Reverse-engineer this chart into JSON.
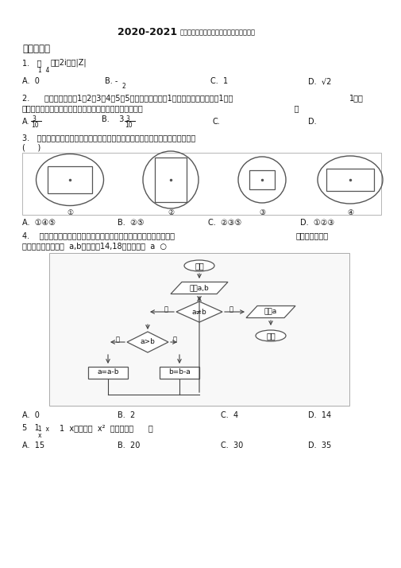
{
  "title_bold": "2020-2021",
  "title_normal": "佛山市高三数学下期末一模试卷（含答案）",
  "section1": "一、选择题",
  "bg_color": "#ffffff",
  "text_color": "#111111",
  "border_color": "#999999",
  "fig_w": 505,
  "fig_h": 714,
  "dpi": 100
}
